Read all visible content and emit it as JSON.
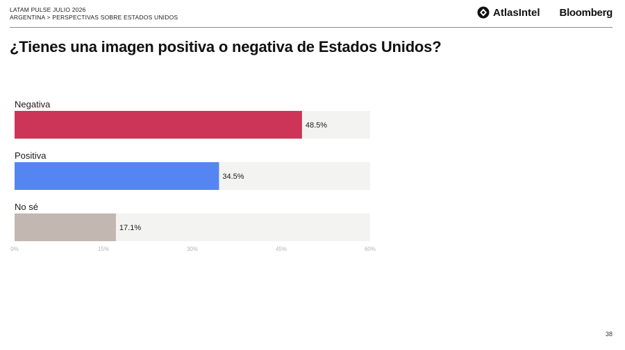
{
  "header": {
    "line1": "LATAM PULSE JULIO 2026",
    "line2": "ARGENTINA > PERSPECTIVAS SOBRE ESTADOS UNIDOS",
    "logo_atlas": "AtlasIntel",
    "logo_bloomberg": "Bloomberg"
  },
  "page_number": "38",
  "chart_data": {
    "type": "bar",
    "orientation": "horizontal",
    "title": "¿Tienes una imagen positiva o negativa de Estados Unidos?",
    "categories": [
      "Negativa",
      "Positiva",
      "No sé"
    ],
    "values": [
      48.5,
      34.5,
      17.1
    ],
    "value_labels": [
      "48.5%",
      "34.5%",
      "17.1%"
    ],
    "colors": [
      "#cc3558",
      "#5585f0",
      "#c3b7b2"
    ],
    "track_color": "#f3f3f1",
    "xlim": [
      0,
      60
    ],
    "xticks": [
      0,
      15,
      30,
      45,
      60
    ],
    "xtick_labels": [
      "0%",
      "15%",
      "30%",
      "45%",
      "60%"
    ],
    "grid": false,
    "legend": "none"
  }
}
